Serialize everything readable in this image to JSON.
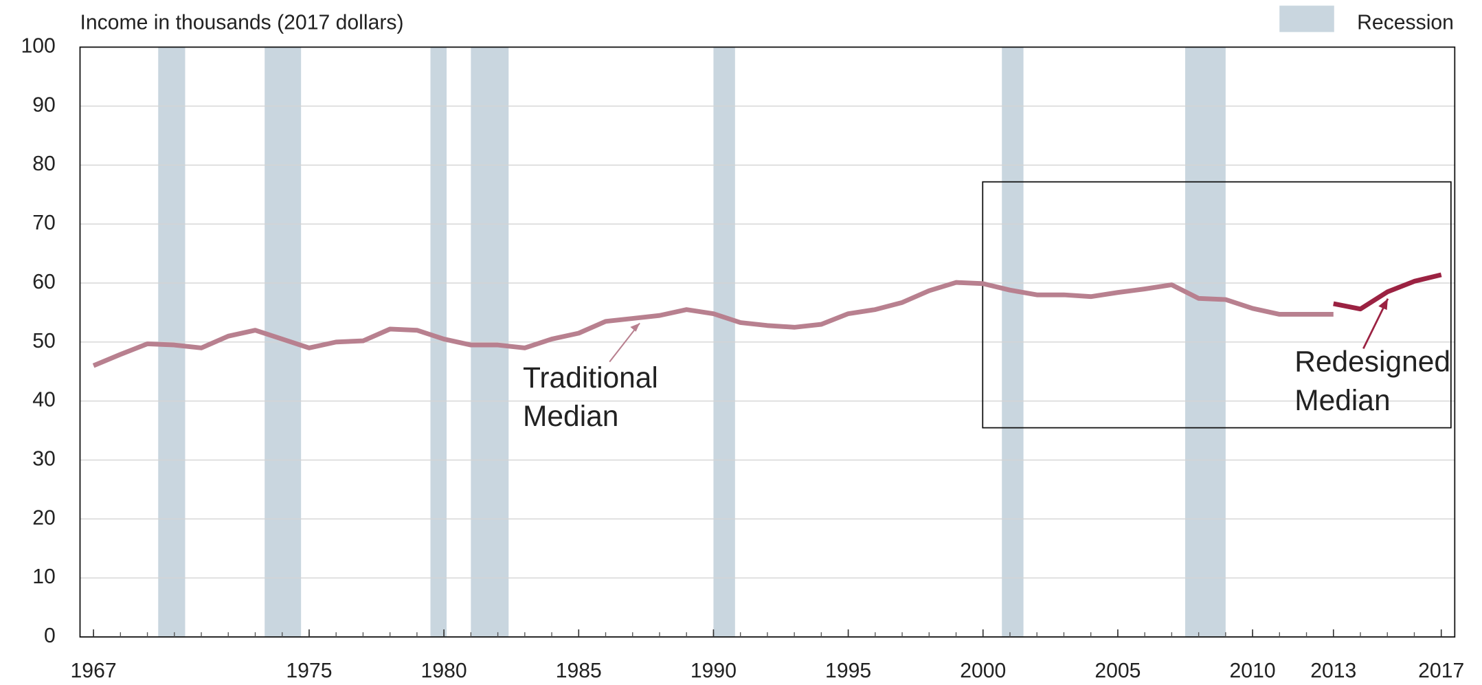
{
  "chart_data": {
    "type": "line",
    "y_axis_label": "Income in thousands (2017 dollars)",
    "x": [
      1967,
      1968,
      1969,
      1970,
      1971,
      1972,
      1973,
      1974,
      1975,
      1976,
      1977,
      1978,
      1979,
      1980,
      1981,
      1982,
      1983,
      1984,
      1985,
      1986,
      1987,
      1988,
      1989,
      1990,
      1991,
      1992,
      1993,
      1994,
      1995,
      1996,
      1997,
      1998,
      1999,
      2000,
      2001,
      2002,
      2003,
      2004,
      2005,
      2006,
      2007,
      2008,
      2009,
      2010,
      2011,
      2012,
      2013,
      2014,
      2015,
      2016,
      2017
    ],
    "series": [
      {
        "name": "Traditional Median",
        "color": "#b8808f",
        "values": [
          46.0,
          47.9,
          49.7,
          49.5,
          49.0,
          51.0,
          52.0,
          50.5,
          49.0,
          50.0,
          50.2,
          52.2,
          52.0,
          50.5,
          49.5,
          49.5,
          49.0,
          50.5,
          51.5,
          53.5,
          54.0,
          54.5,
          55.5,
          54.8,
          53.3,
          52.8,
          52.5,
          53.0,
          54.8,
          55.5,
          56.7,
          58.7,
          60.1,
          59.9,
          58.8,
          58.0,
          58.0,
          57.7,
          58.4,
          59.0,
          59.7,
          57.4,
          57.2,
          55.7,
          54.7,
          54.7,
          54.7,
          null,
          null,
          null,
          null
        ]
      },
      {
        "name": "Redesigned Median",
        "color": "#9b2242",
        "values": [
          null,
          null,
          null,
          null,
          null,
          null,
          null,
          null,
          null,
          null,
          null,
          null,
          null,
          null,
          null,
          null,
          null,
          null,
          null,
          null,
          null,
          null,
          null,
          null,
          null,
          null,
          null,
          null,
          null,
          null,
          null,
          null,
          null,
          null,
          null,
          null,
          null,
          null,
          null,
          null,
          null,
          null,
          null,
          null,
          null,
          null,
          56.5,
          55.6,
          58.5,
          60.3,
          61.4
        ]
      }
    ],
    "annotations": [
      {
        "lines": [
          "Traditional",
          "Median"
        ],
        "color": "#b8808f"
      },
      {
        "lines": [
          "Redesigned",
          "Median"
        ],
        "color": "#9b2242"
      }
    ],
    "recession_label": "Recession",
    "recession_color": "#c9d6df",
    "recessions": [
      {
        "start": 1969.4,
        "end": 1970.4
      },
      {
        "start": 1973.35,
        "end": 1974.7
      },
      {
        "start": 1979.5,
        "end": 1980.1
      },
      {
        "start": 1981.0,
        "end": 1982.4
      },
      {
        "start": 1990.0,
        "end": 1990.8
      },
      {
        "start": 2000.7,
        "end": 2001.5
      },
      {
        "start": 2007.5,
        "end": 2009.0
      }
    ],
    "xlim": [
      1966.5,
      2017.5
    ],
    "xticks": [
      1967,
      1975,
      1980,
      1985,
      1990,
      1995,
      2000,
      2005,
      2010,
      2013,
      2017
    ],
    "ylim": [
      0,
      100
    ],
    "yticks": [
      0,
      10,
      20,
      30,
      40,
      50,
      60,
      70,
      80,
      90,
      100
    ],
    "grid": true
  }
}
